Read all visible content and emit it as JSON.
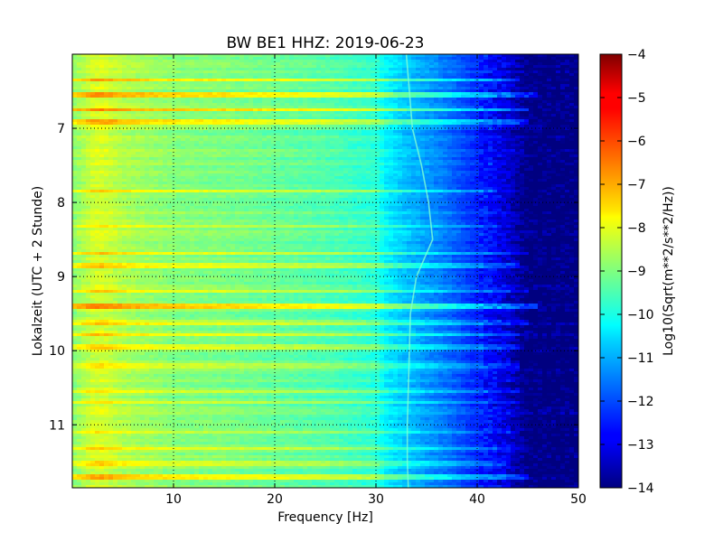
{
  "chart_data": {
    "type": "heatmap",
    "title": "BW BE1 HHZ: 2019-06-23",
    "xlabel": "Frequency [Hz]",
    "ylabel": "Lokalzeit (UTC + 2 Stunde)",
    "xlim": [
      0,
      50
    ],
    "ylim": [
      11.85,
      6.0
    ],
    "x_ticks": [
      10,
      20,
      30,
      40,
      50
    ],
    "y_ticks": [
      7,
      8,
      9,
      10,
      11
    ],
    "grid": true,
    "colormap": "jet",
    "colorbar": {
      "label": "Log10(Sqrt(m**2/s**2/Hz))",
      "range": [
        -14,
        -4
      ],
      "ticks": [
        -4,
        -5,
        -6,
        -7,
        -8,
        -9,
        -10,
        -11,
        -12,
        -13,
        -14
      ]
    },
    "background_profile": {
      "frequency_hz": [
        0,
        2,
        3,
        5,
        10,
        15,
        20,
        25,
        30,
        31,
        33,
        35,
        37,
        39,
        41,
        43,
        44,
        45,
        46,
        50
      ],
      "log10_amplitude": [
        -8.9,
        -8.2,
        -8.1,
        -8.5,
        -8.9,
        -9.0,
        -9.2,
        -9.4,
        -9.8,
        -10.3,
        -10.8,
        -11.2,
        -11.6,
        -12.1,
        -12.6,
        -13.1,
        -13.6,
        -14.0,
        -14.0,
        -14.0
      ]
    },
    "spectral_line": {
      "time_hour": [
        6.0,
        6.5,
        7.0,
        7.5,
        8.0,
        8.5,
        9.0,
        9.5,
        10.0,
        10.5,
        11.0,
        11.5,
        11.85
      ],
      "frequency_hz": [
        33.0,
        33.3,
        33.6,
        34.5,
        35.2,
        35.6,
        34.0,
        33.4,
        33.3,
        33.2,
        33.1,
        33.1,
        33.2
      ]
    },
    "bright_bands": [
      {
        "time_hour": 6.35,
        "delta": 1.2,
        "to_hz": 44
      },
      {
        "time_hour": 6.55,
        "delta": 1.4,
        "to_hz": 46
      },
      {
        "time_hour": 6.75,
        "delta": 1.4,
        "to_hz": 45
      },
      {
        "time_hour": 6.92,
        "delta": 1.3,
        "to_hz": 45
      },
      {
        "time_hour": 7.85,
        "delta": 0.8,
        "to_hz": 42
      },
      {
        "time_hour": 8.32,
        "delta": 0.7,
        "to_hz": 42
      },
      {
        "time_hour": 8.68,
        "delta": 1.0,
        "to_hz": 45
      },
      {
        "time_hour": 8.85,
        "delta": 0.9,
        "to_hz": 44
      },
      {
        "time_hour": 9.2,
        "delta": 0.9,
        "to_hz": 45
      },
      {
        "time_hour": 9.4,
        "delta": 1.5,
        "to_hz": 46
      },
      {
        "time_hour": 9.62,
        "delta": 0.8,
        "to_hz": 45
      },
      {
        "time_hour": 9.78,
        "delta": 0.8,
        "to_hz": 44
      },
      {
        "time_hour": 9.95,
        "delta": 0.8,
        "to_hz": 44
      },
      {
        "time_hour": 10.2,
        "delta": 0.9,
        "to_hz": 44
      },
      {
        "time_hour": 10.55,
        "delta": 0.9,
        "to_hz": 44
      },
      {
        "time_hour": 10.7,
        "delta": 0.8,
        "to_hz": 44
      },
      {
        "time_hour": 11.1,
        "delta": 0.8,
        "to_hz": 44
      },
      {
        "time_hour": 11.32,
        "delta": 1.0,
        "to_hz": 45
      },
      {
        "time_hour": 11.52,
        "delta": 0.8,
        "to_hz": 43
      },
      {
        "time_hour": 11.7,
        "delta": 1.1,
        "to_hz": 45
      }
    ]
  }
}
